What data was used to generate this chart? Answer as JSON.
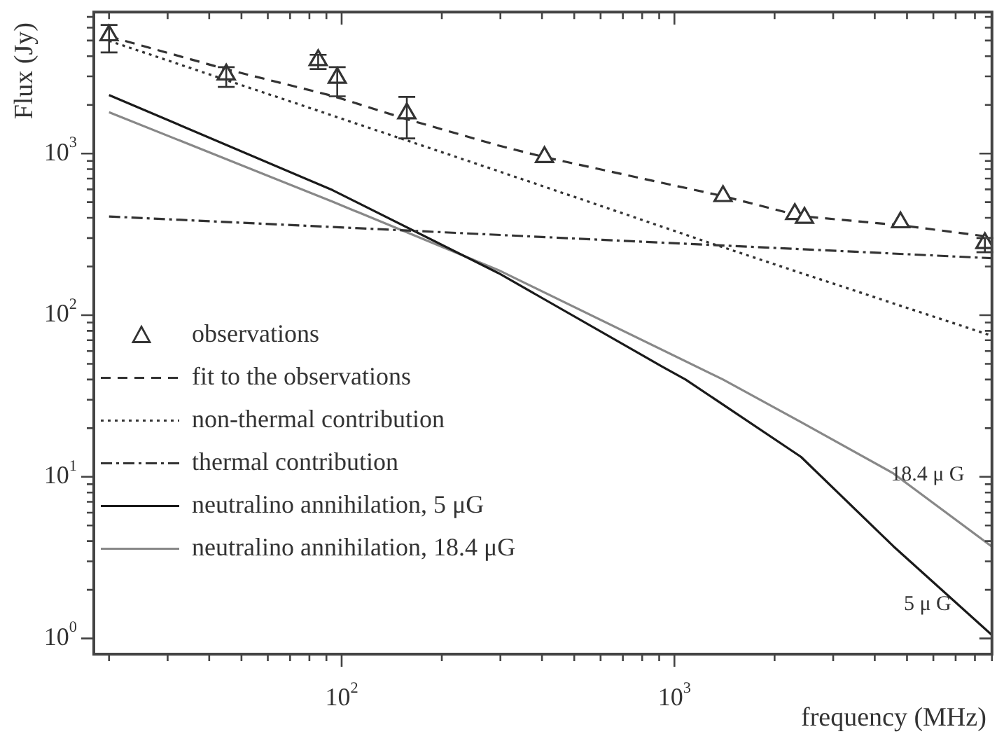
{
  "chart_data": {
    "type": "line",
    "xlabel": "frequency (MHz)",
    "ylabel": "Flux (Jy)",
    "log": "xy",
    "legend": "bottom left",
    "xlim": [
      18,
      9000
    ],
    "ylim": [
      0.8,
      7500
    ],
    "xticks": [
      {
        "value": 20,
        "label": null
      },
      {
        "value": 30,
        "label": null
      },
      {
        "value": 40,
        "label": null
      },
      {
        "value": 50,
        "label": null
      },
      {
        "value": 60,
        "label": null
      },
      {
        "value": 70,
        "label": null
      },
      {
        "value": 80,
        "label": null
      },
      {
        "value": 90,
        "label": null
      },
      {
        "value": 100,
        "label": "10$^{2}$"
      },
      {
        "value": 200,
        "label": null
      },
      {
        "value": 300,
        "label": null
      },
      {
        "value": 400,
        "label": null
      },
      {
        "value": 500,
        "label": null
      },
      {
        "value": 600,
        "label": null
      },
      {
        "value": 700,
        "label": null
      },
      {
        "value": 800,
        "label": null
      },
      {
        "value": 900,
        "label": null
      },
      {
        "value": 1000,
        "label": "10$^{3}$"
      },
      {
        "value": 2000,
        "label": null
      },
      {
        "value": 3000,
        "label": null
      },
      {
        "value": 4000,
        "label": null
      },
      {
        "value": 5000,
        "label": null
      },
      {
        "value": 6000,
        "label": null
      },
      {
        "value": 7000,
        "label": null
      },
      {
        "value": 8000,
        "label": null
      },
      {
        "value": 9000,
        "label": null
      }
    ],
    "yticks": [
      {
        "value": 1,
        "label": "10$^{0}$"
      },
      {
        "value": 2,
        "label": null
      },
      {
        "value": 3,
        "label": null
      },
      {
        "value": 4,
        "label": null
      },
      {
        "value": 5,
        "label": null
      },
      {
        "value": 6,
        "label": null
      },
      {
        "value": 7,
        "label": null
      },
      {
        "value": 8,
        "label": null
      },
      {
        "value": 9,
        "label": null
      },
      {
        "value": 10,
        "label": "10$^{1}$"
      },
      {
        "value": 20,
        "label": null
      },
      {
        "value": 30,
        "label": null
      },
      {
        "value": 40,
        "label": null
      },
      {
        "value": 50,
        "label": null
      },
      {
        "value": 60,
        "label": null
      },
      {
        "value": 70,
        "label": null
      },
      {
        "value": 80,
        "label": null
      },
      {
        "value": 90,
        "label": null
      },
      {
        "value": 100,
        "label": "10$^{2}$"
      },
      {
        "value": 200,
        "label": null
      },
      {
        "value": 300,
        "label": null
      },
      {
        "value": 400,
        "label": null
      },
      {
        "value": 500,
        "label": null
      },
      {
        "value": 600,
        "label": null
      },
      {
        "value": 700,
        "label": null
      },
      {
        "value": 800,
        "label": null
      },
      {
        "value": 900,
        "label": null
      },
      {
        "value": 1000,
        "label": "10$^{3}$"
      },
      {
        "value": 2000,
        "label": null
      },
      {
        "value": 3000,
        "label": null
      },
      {
        "value": 4000,
        "label": null
      },
      {
        "value": 5000,
        "label": null
      },
      {
        "value": 6000,
        "label": null
      },
      {
        "value": 7000,
        "label": null
      }
    ],
    "series": [
      {
        "name": "observations",
        "type": "scatter",
        "marker": "triangle",
        "color": "#333333",
        "x": [
          20,
          45,
          85,
          97,
          157,
          407,
          1400,
          2300,
          2460,
          4780,
          8570
        ],
        "values": [
          5380,
          3080,
          3780,
          2940,
          1770,
          950,
          545,
          422,
          400,
          375,
          279
        ],
        "errors": [
          [
            4220,
            6240
          ],
          [
            2580,
            3420
          ],
          [
            3330,
            4080
          ],
          [
            2260,
            3420
          ],
          [
            1240,
            2240
          ],
          null,
          null,
          null,
          null,
          null,
          [
            245,
            300
          ]
        ]
      },
      {
        "name": "fit to the observations",
        "line_style": "dashed",
        "color": "#333333",
        "x": [
          20,
          45,
          94,
          157,
          296,
          407,
          1400,
          2400,
          4780,
          9000
        ],
        "values": [
          5300,
          3320,
          2270,
          1630,
          1120,
          950,
          545,
          410,
          360,
          304
        ]
      },
      {
        "name": "non-thermal contribution",
        "line_style": "dotted",
        "color": "#333333",
        "x": [
          20,
          296,
          1310,
          9000
        ],
        "values": [
          4980,
          778,
          275,
          74.5
        ]
      },
      {
        "name": "thermal contribution",
        "line_style": "dashdot",
        "color": "#333333",
        "x": [
          20,
          9000
        ],
        "values": [
          408,
          225
        ]
      },
      {
        "name": "neutralino annihilation, 5 μG",
        "line_style": "solid",
        "color": "#1a1a1a",
        "x": [
          20,
          94,
          296,
          920,
          1080,
          2400,
          4550,
          9000
        ],
        "values": [
          2300,
          593,
          182,
          48,
          40,
          13.3,
          3.72,
          1.05
        ]
      },
      {
        "name": "neutralino annihilation, 18.4 μG",
        "line_style": "solid",
        "color": "#888888",
        "x": [
          20,
          94,
          296,
          1400,
          2400,
          4550,
          9000
        ],
        "values": [
          1800,
          503,
          190,
          40,
          21.8,
          10.5,
          3.7
        ]
      }
    ],
    "annotations": [
      "18.4 μ G",
      "5 μ G"
    ]
  }
}
